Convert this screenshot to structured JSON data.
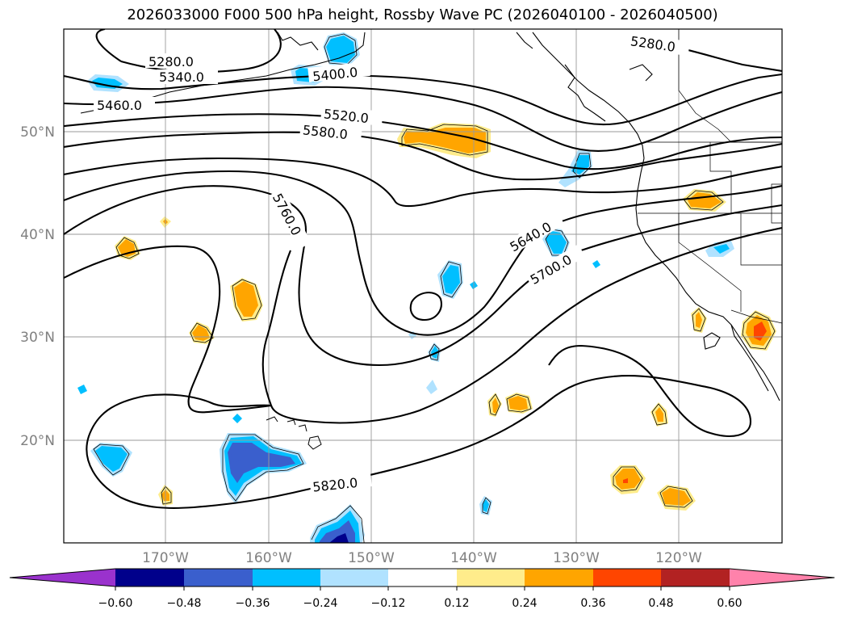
{
  "title": "2026033000 F000 500 hPa height, Rossby Wave PC (2026040100 - 2026040500)",
  "latitude_labels": [
    "50°N",
    "40°N",
    "30°N",
    "20°N"
  ],
  "longitude_labels": [
    "170°W",
    "160°W",
    "150°W",
    "140°W",
    "130°W",
    "120°W"
  ],
  "contour_labels": [
    "5280.0",
    "5340.0",
    "5400.0",
    "5460.0",
    "5520.0",
    "5580.0",
    "5640.0",
    "5700.0",
    "5760.0",
    "5820.0",
    "5280.0"
  ],
  "colorbar": {
    "ticks": [
      "−0.60",
      "−0.48",
      "−0.36",
      "−0.24",
      "−0.12",
      "0.12",
      "0.24",
      "0.36",
      "0.48",
      "0.60"
    ],
    "colors": [
      "#9a32cd",
      "#00008b",
      "#3a5fcd",
      "#00bfff",
      "#b0e2ff",
      "#ffffff",
      "#ffec8b",
      "#ffa500",
      "#ff4500",
      "#b22222",
      "#ff82ab"
    ]
  },
  "colors": {
    "positive_light": "#ffec8b",
    "positive_mid": "#ffa500",
    "positive_strong": "#ff4500",
    "negative_light": "#b0e2ff",
    "negative_mid": "#00bfff",
    "negative_strong": "#3a5fcd",
    "negative_max": "#00008b"
  }
}
